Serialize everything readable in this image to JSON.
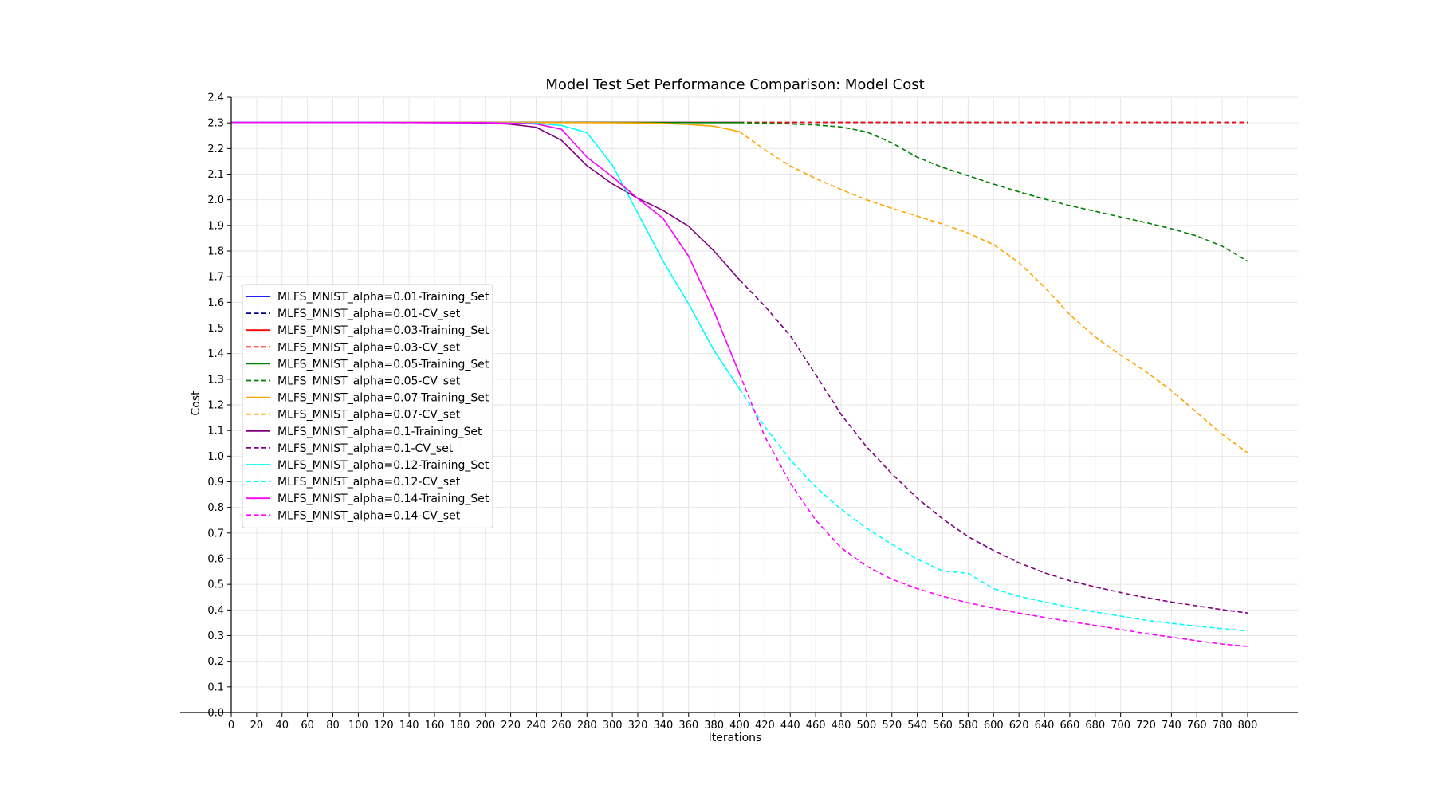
{
  "chart_data": {
    "type": "line",
    "title": "Model Test Set Performance Comparison: Model Cost",
    "xlabel": "Iterations",
    "ylabel": "Cost",
    "xlim": [
      0,
      840
    ],
    "ylim": [
      0,
      2.4
    ],
    "xticks": [
      0,
      20,
      40,
      60,
      80,
      100,
      120,
      140,
      160,
      180,
      200,
      220,
      240,
      260,
      280,
      300,
      320,
      340,
      360,
      380,
      400,
      420,
      440,
      460,
      480,
      500,
      520,
      540,
      560,
      580,
      600,
      620,
      640,
      660,
      680,
      700,
      720,
      740,
      760,
      780,
      800
    ],
    "yticks": [
      0.0,
      0.1,
      0.2,
      0.3,
      0.4,
      0.5,
      0.6,
      0.7,
      0.8,
      0.9,
      1.0,
      1.1,
      1.2,
      1.3,
      1.4,
      1.5,
      1.6,
      1.7,
      1.8,
      1.9,
      2.0,
      2.1,
      2.2,
      2.3,
      2.4
    ],
    "ytick_labels": [
      "0.0",
      "0.1",
      "0.2",
      "0.3",
      "0.4",
      "0.5",
      "0.6",
      "0.7",
      "0.8",
      "0.9",
      "1.0",
      "1.1",
      "1.2",
      "1.3",
      "1.4",
      "1.5",
      "1.6",
      "1.7",
      "1.8",
      "1.9",
      "2.0",
      "2.1",
      "2.2",
      "2.3",
      "2.4"
    ],
    "grid": true,
    "legend_position": "center-left",
    "series": [
      {
        "name": "MLFS_MNIST_alpha=0.01-Training_Set",
        "color": "#0000ff",
        "dash": "solid",
        "x": [
          0,
          100,
          200,
          300,
          400
        ],
        "y": [
          2.302,
          2.302,
          2.302,
          2.302,
          2.302
        ]
      },
      {
        "name": "MLFS_MNIST_alpha=0.01-CV_set",
        "color": "#00008b",
        "dash": "dashed",
        "x": [
          400,
          500,
          600,
          700,
          800
        ],
        "y": [
          2.302,
          2.302,
          2.302,
          2.302,
          2.302
        ]
      },
      {
        "name": "MLFS_MNIST_alpha=0.03-Training_Set",
        "color": "#ff0000",
        "dash": "solid",
        "x": [
          0,
          100,
          200,
          300,
          400
        ],
        "y": [
          2.302,
          2.302,
          2.302,
          2.302,
          2.302
        ]
      },
      {
        "name": "MLFS_MNIST_alpha=0.03-CV_set",
        "color": "#ff0000",
        "dash": "dashed",
        "x": [
          400,
          500,
          600,
          700,
          800
        ],
        "y": [
          2.302,
          2.302,
          2.302,
          2.302,
          2.302
        ]
      },
      {
        "name": "MLFS_MNIST_alpha=0.05-Training_Set",
        "color": "#008000",
        "dash": "solid",
        "x": [
          0,
          100,
          200,
          300,
          400
        ],
        "y": [
          2.302,
          2.302,
          2.302,
          2.302,
          2.301
        ]
      },
      {
        "name": "MLFS_MNIST_alpha=0.05-CV_set",
        "color": "#008000",
        "dash": "dashed",
        "x": [
          400,
          420,
          440,
          460,
          480,
          500,
          520,
          540,
          560,
          580,
          600,
          620,
          640,
          660,
          680,
          700,
          720,
          740,
          760,
          780,
          800
        ],
        "y": [
          2.301,
          2.299,
          2.296,
          2.292,
          2.284,
          2.265,
          2.222,
          2.166,
          2.126,
          2.094,
          2.061,
          2.031,
          2.003,
          1.977,
          1.955,
          1.933,
          1.911,
          1.887,
          1.859,
          1.819,
          1.76
        ]
      },
      {
        "name": "MLFS_MNIST_alpha=0.07-Training_Set",
        "color": "#ffa500",
        "dash": "solid",
        "x": [
          0,
          100,
          200,
          240,
          280,
          320,
          340,
          360,
          380,
          400
        ],
        "y": [
          2.302,
          2.302,
          2.302,
          2.302,
          2.301,
          2.3,
          2.298,
          2.294,
          2.287,
          2.266
        ]
      },
      {
        "name": "MLFS_MNIST_alpha=0.07-CV_set",
        "color": "#ffa500",
        "dash": "dashed",
        "x": [
          400,
          420,
          440,
          460,
          480,
          500,
          520,
          540,
          560,
          580,
          600,
          620,
          640,
          660,
          680,
          700,
          720,
          740,
          760,
          780,
          800
        ],
        "y": [
          2.266,
          2.195,
          2.132,
          2.083,
          2.04,
          2.0,
          1.967,
          1.936,
          1.905,
          1.87,
          1.825,
          1.755,
          1.66,
          1.552,
          1.465,
          1.394,
          1.329,
          1.256,
          1.17,
          1.085,
          1.013
        ]
      },
      {
        "name": "MLFS_MNIST_alpha=0.1-Training_Set",
        "color": "#800080",
        "dash": "solid",
        "x": [
          0,
          100,
          200,
          220,
          240,
          260,
          280,
          300,
          320,
          340,
          360,
          380,
          400
        ],
        "y": [
          2.302,
          2.302,
          2.3,
          2.295,
          2.283,
          2.232,
          2.133,
          2.062,
          2.006,
          1.958,
          1.897,
          1.8,
          1.688
        ]
      },
      {
        "name": "MLFS_MNIST_alpha=0.1-CV_set",
        "color": "#800080",
        "dash": "dashed",
        "x": [
          400,
          420,
          440,
          460,
          480,
          500,
          520,
          540,
          560,
          580,
          600,
          620,
          640,
          660,
          680,
          700,
          720,
          740,
          760,
          780,
          800
        ],
        "y": [
          1.688,
          1.585,
          1.47,
          1.318,
          1.163,
          1.037,
          0.931,
          0.836,
          0.755,
          0.686,
          0.632,
          0.584,
          0.545,
          0.514,
          0.49,
          0.468,
          0.448,
          0.431,
          0.416,
          0.401,
          0.388
        ]
      },
      {
        "name": "MLFS_MNIST_alpha=0.12-Training_Set",
        "color": "#00ffff",
        "dash": "solid",
        "x": [
          0,
          100,
          200,
          240,
          260,
          280,
          300,
          320,
          340,
          360,
          380,
          400
        ],
        "y": [
          2.302,
          2.302,
          2.301,
          2.298,
          2.29,
          2.262,
          2.135,
          1.948,
          1.76,
          1.594,
          1.412,
          1.263
        ]
      },
      {
        "name": "MLFS_MNIST_alpha=0.12-CV_set",
        "color": "#00ffff",
        "dash": "dashed",
        "x": [
          400,
          420,
          440,
          460,
          480,
          500,
          520,
          540,
          560,
          580,
          600,
          620,
          640,
          660,
          680,
          700,
          720,
          740,
          760,
          780,
          800
        ],
        "y": [
          1.263,
          1.115,
          0.986,
          0.88,
          0.793,
          0.719,
          0.656,
          0.598,
          0.552,
          0.543,
          0.483,
          0.453,
          0.431,
          0.411,
          0.392,
          0.376,
          0.36,
          0.348,
          0.337,
          0.327,
          0.318
        ]
      },
      {
        "name": "MLFS_MNIST_alpha=0.14-Training_Set",
        "color": "#ff00ff",
        "dash": "solid",
        "x": [
          0,
          100,
          200,
          240,
          260,
          280,
          300,
          320,
          340,
          360,
          380,
          400
        ],
        "y": [
          2.302,
          2.302,
          2.301,
          2.296,
          2.275,
          2.166,
          2.09,
          2.005,
          1.927,
          1.78,
          1.564,
          1.322
        ]
      },
      {
        "name": "MLFS_MNIST_alpha=0.14-CV_set",
        "color": "#ff00ff",
        "dash": "dashed",
        "x": [
          400,
          420,
          440,
          460,
          480,
          500,
          520,
          540,
          560,
          580,
          600,
          620,
          640,
          660,
          680,
          700,
          720,
          740,
          760,
          780,
          800
        ],
        "y": [
          1.322,
          1.076,
          0.895,
          0.751,
          0.643,
          0.571,
          0.52,
          0.483,
          0.453,
          0.428,
          0.407,
          0.388,
          0.371,
          0.355,
          0.34,
          0.324,
          0.308,
          0.294,
          0.28,
          0.267,
          0.258
        ]
      }
    ]
  }
}
